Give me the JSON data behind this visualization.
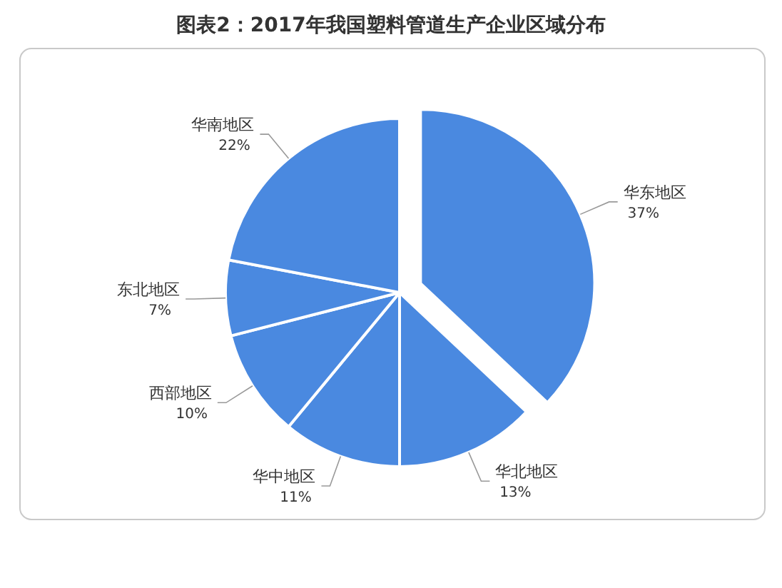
{
  "chart_data": {
    "type": "pie",
    "title": "图表2：2017年我国塑料管道生产企业区域分布",
    "categories": [
      "华东地区",
      "华北地区",
      "华中地区",
      "西部地区",
      "东北地区",
      "华南地区"
    ],
    "values": [
      37,
      13,
      11,
      10,
      7,
      22
    ],
    "value_labels": [
      "37%",
      "13%",
      "11%",
      "10%",
      "7%",
      "22%"
    ],
    "colors": [
      "#4a89e0",
      "#4a89e0",
      "#4a89e0",
      "#4a89e0",
      "#4a89e0",
      "#4a89e0"
    ]
  }
}
